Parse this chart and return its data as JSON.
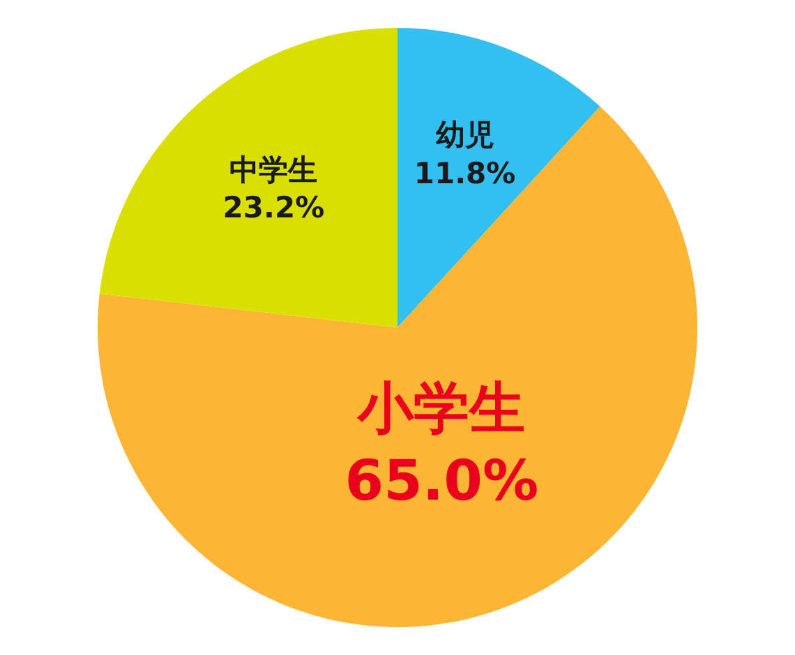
{
  "chart_data": {
    "type": "pie",
    "categories": [
      "幼児",
      "小学生",
      "中学生"
    ],
    "values": [
      11.8,
      65.0,
      23.2
    ],
    "colors": [
      "#33c0f0",
      "#fdb634",
      "#d9e000"
    ],
    "value_labels": [
      "11.8%",
      "65.0%",
      "23.2%"
    ]
  }
}
